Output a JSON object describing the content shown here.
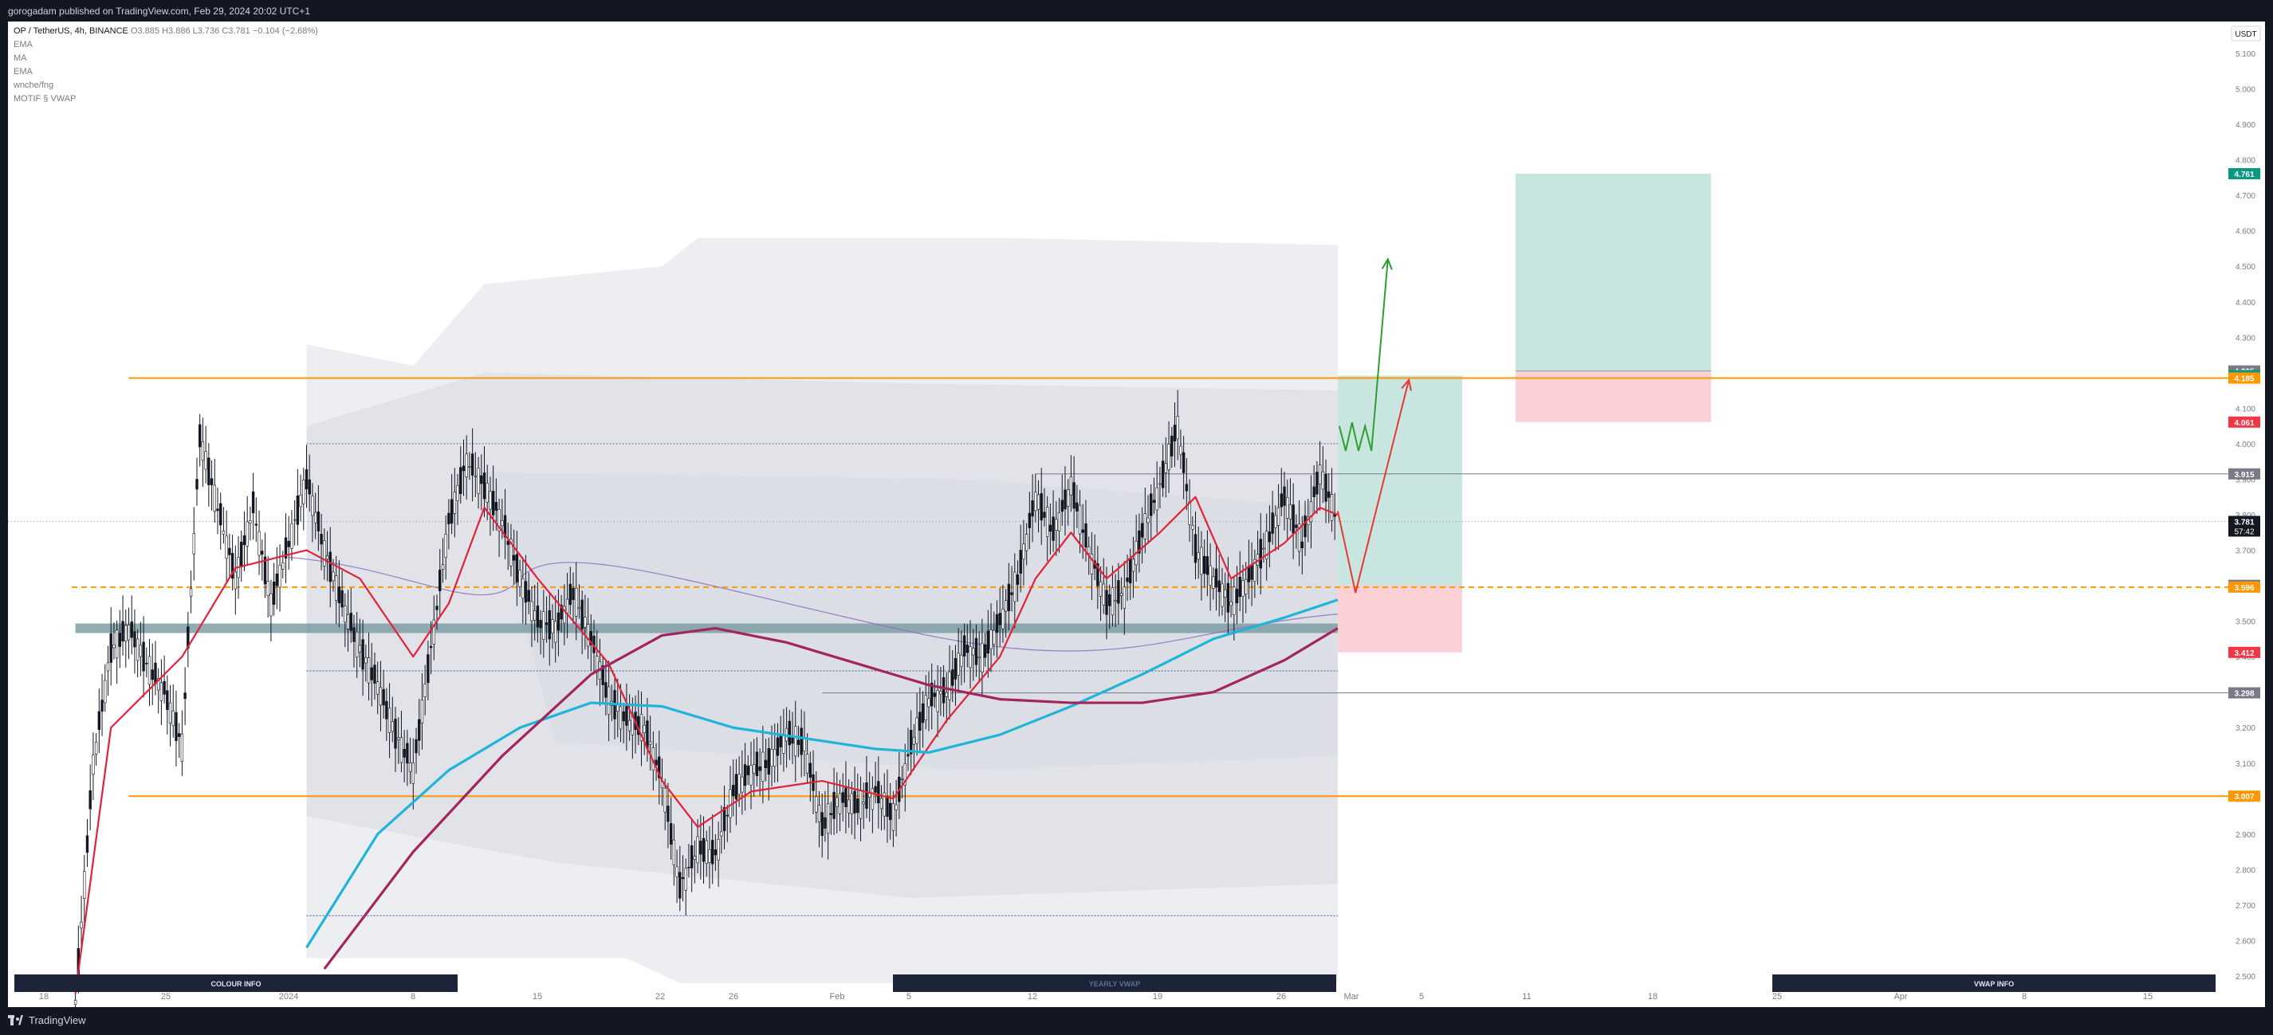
{
  "header": {
    "published": "gorogadam published on TradingView.com, Feb 29, 2024 20:02 UTC+1"
  },
  "footer": {
    "brand": "TradingView"
  },
  "legend": {
    "symbol": "OP / TetherUS, 4h, BINANCE",
    "ohlc": "O3.885 H3.886 L3.736 C3.781 −0.104 (−2.68%)",
    "indicators": [
      "EMA",
      "MA",
      "EMA",
      "wnche/fng",
      "MOTIF § VWAP"
    ]
  },
  "chart_data": {
    "type": "line",
    "title": "OP / TetherUS, 4h, BINANCE",
    "currency": "USDT",
    "ylim": [
      2.5,
      5.1
    ],
    "y_ticks": [
      "5.100",
      "5.000",
      "4.900",
      "4.800",
      "4.700",
      "4.600",
      "4.500",
      "4.400",
      "4.300",
      "4.200",
      "4.100",
      "4.000",
      "3.900",
      "3.800",
      "3.700",
      "3.600",
      "3.500",
      "3.400",
      "3.300",
      "3.200",
      "3.100",
      "3.000",
      "2.900",
      "2.800",
      "2.700",
      "2.600",
      "2.500"
    ],
    "x_ticks": [
      "18",
      "25",
      "2024",
      "8",
      "15",
      "22",
      "26",
      "Feb",
      "5",
      "12",
      "19",
      "26",
      "Mar",
      "5",
      "11",
      "18",
      "25",
      "Apr",
      "8",
      "15"
    ],
    "colors": {
      "candle": "#131722",
      "ema_fast": "#e0223b",
      "ma": "#1fb4d8",
      "ema_slow": "#a4245e",
      "orange_level": "#ff9800",
      "long_tp_zone": "#c8e6df",
      "long_sl_zone": "#fcd1d5",
      "up_arrow": "#2da02c",
      "down_arrow": "#e53935"
    },
    "close_series": [
      {
        "x": "Dec 20",
        "y": 2.42
      },
      {
        "x": "Dec 21",
        "y": 3.1
      },
      {
        "x": "Dec 22",
        "y": 3.42
      },
      {
        "x": "Dec 23",
        "y": 3.48
      },
      {
        "x": "Dec 24",
        "y": 3.38
      },
      {
        "x": "Dec 25",
        "y": 3.3
      },
      {
        "x": "Dec 26",
        "y": 3.15
      },
      {
        "x": "Dec 27",
        "y": 4.02
      },
      {
        "x": "Dec 28",
        "y": 3.82
      },
      {
        "x": "Dec 29",
        "y": 3.62
      },
      {
        "x": "Dec 30",
        "y": 3.82
      },
      {
        "x": "Dec 31",
        "y": 3.55
      },
      {
        "x": "Jan 1",
        "y": 3.72
      },
      {
        "x": "Jan 2",
        "y": 3.9
      },
      {
        "x": "Jan 3",
        "y": 3.7
      },
      {
        "x": "Jan 4",
        "y": 3.55
      },
      {
        "x": "Jan 5",
        "y": 3.42
      },
      {
        "x": "Jan 6",
        "y": 3.32
      },
      {
        "x": "Jan 7",
        "y": 3.18
      },
      {
        "x": "Jan 8",
        "y": 3.08
      },
      {
        "x": "Jan 9",
        "y": 3.42
      },
      {
        "x": "Jan 10",
        "y": 3.78
      },
      {
        "x": "Jan 11",
        "y": 3.95
      },
      {
        "x": "Jan 12",
        "y": 3.88
      },
      {
        "x": "Jan 13",
        "y": 3.78
      },
      {
        "x": "Jan 14",
        "y": 3.62
      },
      {
        "x": "Jan 15",
        "y": 3.5
      },
      {
        "x": "Jan 16",
        "y": 3.48
      },
      {
        "x": "Jan 17",
        "y": 3.58
      },
      {
        "x": "Jan 18",
        "y": 3.45
      },
      {
        "x": "Jan 19",
        "y": 3.28
      },
      {
        "x": "Jan 20",
        "y": 3.22
      },
      {
        "x": "Jan 21",
        "y": 3.2
      },
      {
        "x": "Jan 22",
        "y": 3.05
      },
      {
        "x": "Jan 23",
        "y": 2.75
      },
      {
        "x": "Jan 24",
        "y": 2.86
      },
      {
        "x": "Jan 25",
        "y": 2.84
      },
      {
        "x": "Jan 26",
        "y": 3.02
      },
      {
        "x": "Jan 27",
        "y": 3.08
      },
      {
        "x": "Jan 28",
        "y": 3.1
      },
      {
        "x": "Jan 29",
        "y": 3.18
      },
      {
        "x": "Jan 30",
        "y": 3.15
      },
      {
        "x": "Jan 31",
        "y": 2.92
      },
      {
        "x": "Feb 1",
        "y": 3.0
      },
      {
        "x": "Feb 2",
        "y": 2.98
      },
      {
        "x": "Feb 3",
        "y": 3.02
      },
      {
        "x": "Feb 4",
        "y": 2.95
      },
      {
        "x": "Feb 5",
        "y": 3.15
      },
      {
        "x": "Feb 6",
        "y": 3.28
      },
      {
        "x": "Feb 7",
        "y": 3.3
      },
      {
        "x": "Feb 8",
        "y": 3.42
      },
      {
        "x": "Feb 9",
        "y": 3.4
      },
      {
        "x": "Feb 10",
        "y": 3.5
      },
      {
        "x": "Feb 11",
        "y": 3.62
      },
      {
        "x": "Feb 12",
        "y": 3.85
      },
      {
        "x": "Feb 13",
        "y": 3.75
      },
      {
        "x": "Feb 14",
        "y": 3.88
      },
      {
        "x": "Feb 15",
        "y": 3.7
      },
      {
        "x": "Feb 16",
        "y": 3.55
      },
      {
        "x": "Feb 17",
        "y": 3.58
      },
      {
        "x": "Feb 18",
        "y": 3.75
      },
      {
        "x": "Feb 19",
        "y": 3.88
      },
      {
        "x": "Feb 20",
        "y": 4.05
      },
      {
        "x": "Feb 21",
        "y": 3.7
      },
      {
        "x": "Feb 22",
        "y": 3.62
      },
      {
        "x": "Feb 23",
        "y": 3.55
      },
      {
        "x": "Feb 24",
        "y": 3.62
      },
      {
        "x": "Feb 25",
        "y": 3.72
      },
      {
        "x": "Feb 26",
        "y": 3.85
      },
      {
        "x": "Feb 27",
        "y": 3.72
      },
      {
        "x": "Feb 28",
        "y": 3.92
      },
      {
        "x": "Feb 29",
        "y": 3.781
      }
    ],
    "series": [
      {
        "values": [
          {
            "x": "Dec 20",
            "y": 2.45
          },
          {
            "x": "Dec 22",
            "y": 3.2
          },
          {
            "x": "Dec 26",
            "y": 3.4
          },
          {
            "x": "Dec 29",
            "y": 3.65
          },
          {
            "x": "Jan 2",
            "y": 3.7
          },
          {
            "x": "Jan 5",
            "y": 3.62
          },
          {
            "x": "Jan 8",
            "y": 3.4
          },
          {
            "x": "Jan 10",
            "y": 3.55
          },
          {
            "x": "Jan 12",
            "y": 3.82
          },
          {
            "x": "Jan 15",
            "y": 3.62
          },
          {
            "x": "Jan 19",
            "y": 3.38
          },
          {
            "x": "Jan 22",
            "y": 3.05
          },
          {
            "x": "Jan 24",
            "y": 2.92
          },
          {
            "x": "Jan 27",
            "y": 3.02
          },
          {
            "x": "Jan 31",
            "y": 3.05
          },
          {
            "x": "Feb 4",
            "y": 3.0
          },
          {
            "x": "Feb 7",
            "y": 3.22
          },
          {
            "x": "Feb 10",
            "y": 3.4
          },
          {
            "x": "Feb 12",
            "y": 3.62
          },
          {
            "x": "Feb 14",
            "y": 3.75
          },
          {
            "x": "Feb 16",
            "y": 3.62
          },
          {
            "x": "Feb 19",
            "y": 3.75
          },
          {
            "x": "Feb 21",
            "y": 3.85
          },
          {
            "x": "Feb 23",
            "y": 3.62
          },
          {
            "x": "Feb 26",
            "y": 3.72
          },
          {
            "x": "Feb 28",
            "y": 3.82
          },
          {
            "x": "Feb 29",
            "y": 3.8
          }
        ]
      },
      {
        "values": [
          {
            "x": "Jan 2",
            "y": 2.58
          },
          {
            "x": "Jan 6",
            "y": 2.9
          },
          {
            "x": "Jan 10",
            "y": 3.08
          },
          {
            "x": "Jan 14",
            "y": 3.2
          },
          {
            "x": "Jan 18",
            "y": 3.27
          },
          {
            "x": "Jan 22",
            "y": 3.26
          },
          {
            "x": "Jan 26",
            "y": 3.2
          },
          {
            "x": "Jan 30",
            "y": 3.17
          },
          {
            "x": "Feb 3",
            "y": 3.14
          },
          {
            "x": "Feb 6",
            "y": 3.13
          },
          {
            "x": "Feb 10",
            "y": 3.18
          },
          {
            "x": "Feb 14",
            "y": 3.26
          },
          {
            "x": "Feb 18",
            "y": 3.35
          },
          {
            "x": "Feb 22",
            "y": 3.45
          },
          {
            "x": "Feb 26",
            "y": 3.51
          },
          {
            "x": "Feb 29",
            "y": 3.56
          }
        ]
      },
      {
        "values": [
          {
            "x": "Jan 3",
            "y": 2.52
          },
          {
            "x": "Jan 8",
            "y": 2.85
          },
          {
            "x": "Jan 13",
            "y": 3.12
          },
          {
            "x": "Jan 18",
            "y": 3.35
          },
          {
            "x": "Jan 22",
            "y": 3.46
          },
          {
            "x": "Jan 25",
            "y": 3.48
          },
          {
            "x": "Jan 29",
            "y": 3.44
          },
          {
            "x": "Feb 2",
            "y": 3.38
          },
          {
            "x": "Feb 6",
            "y": 3.32
          },
          {
            "x": "Feb 10",
            "y": 3.28
          },
          {
            "x": "Feb 14",
            "y": 3.27
          },
          {
            "x": "Feb 18",
            "y": 3.27
          },
          {
            "x": "Feb 22",
            "y": 3.3
          },
          {
            "x": "Feb 26",
            "y": 3.39
          },
          {
            "x": "Feb 29",
            "y": 3.48
          }
        ]
      }
    ],
    "levels": {
      "resistance": 4.185,
      "support": 3.007,
      "entry_dashed": 3.596,
      "gray_levels": [
        3.915,
        3.298
      ],
      "support_band": 3.48
    },
    "price_labels": [
      {
        "text": "4.761",
        "y": 4.761,
        "color": "#089981"
      },
      {
        "text": "4.205",
        "y": 4.205,
        "color": "#787b86"
      },
      {
        "text": "4.192",
        "y": 4.192,
        "color": "#089981"
      },
      {
        "text": "4.185",
        "y": 4.185,
        "color": "#ff9800"
      },
      {
        "text": "4.061",
        "y": 4.061,
        "color": "#f23645"
      },
      {
        "text": "3.915",
        "y": 3.915,
        "color": "#787b86"
      },
      {
        "text": "3.781",
        "y": 3.781,
        "color": "#131722",
        "countdown": "57:42"
      },
      {
        "text": "3.601",
        "y": 3.601,
        "color": "#787b86"
      },
      {
        "text": "3.596",
        "y": 3.596,
        "color": "#ff9800"
      },
      {
        "text": "3.412",
        "y": 3.412,
        "color": "#f23645"
      },
      {
        "text": "3.298",
        "y": 3.298,
        "color": "#787b86"
      },
      {
        "text": "3.007",
        "y": 3.007,
        "color": "#ff9800"
      }
    ],
    "boxes": [
      {
        "name": "long-position",
        "x_start": "Feb 29",
        "x_end": "Mar 7",
        "entry": 3.601,
        "target": 4.192,
        "stop": 3.412
      },
      {
        "name": "trade-box",
        "x_start": "Mar 10",
        "x_end": "Mar 21",
        "top": 4.761,
        "mid": 4.205,
        "bottom": 4.061
      }
    ],
    "projections": [
      {
        "name": "up-path",
        "points": [
          {
            "x": "Feb 29",
            "y": 4.05
          },
          {
            "x": "Mar 1",
            "y": 3.98
          },
          {
            "x": "Mar 3",
            "y": 4.52
          }
        ]
      },
      {
        "name": "down-then-up-path",
        "points": [
          {
            "x": "Feb 29",
            "y": 3.81
          },
          {
            "x": "Mar 1",
            "y": 3.58
          },
          {
            "x": "Mar 4",
            "y": 4.18
          }
        ]
      }
    ],
    "info_boxes": [
      "COLOUR INFO",
      "YEARLY VWAP",
      "VWAP INFO"
    ]
  }
}
